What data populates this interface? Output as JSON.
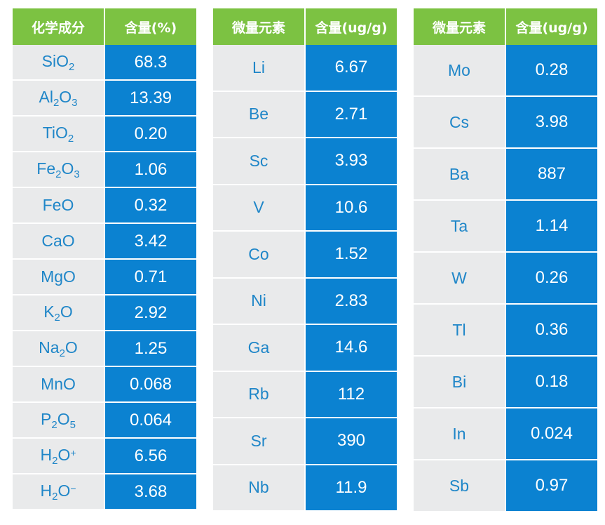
{
  "table1": {
    "header": [
      "化学成分",
      "含量(%)"
    ],
    "rows": [
      {
        "base": "SiO",
        "s1": "2",
        "m": "",
        "s2": "",
        "sup": "",
        "value": "68.3"
      },
      {
        "base": "Al",
        "s1": "2",
        "m": "O",
        "s2": "3",
        "sup": "",
        "value": "13.39"
      },
      {
        "base": "TiO",
        "s1": "2",
        "m": "",
        "s2": "",
        "sup": "",
        "value": "0.20"
      },
      {
        "base": "Fe",
        "s1": "2",
        "m": "O",
        "s2": "3",
        "sup": "",
        "value": "1.06"
      },
      {
        "base": "FeO",
        "s1": "",
        "m": "",
        "s2": "",
        "sup": "",
        "value": "0.32"
      },
      {
        "base": "CaO",
        "s1": "",
        "m": "",
        "s2": "",
        "sup": "",
        "value": "3.42"
      },
      {
        "base": "MgO",
        "s1": "",
        "m": "",
        "s2": "",
        "sup": "",
        "value": "0.71"
      },
      {
        "base": "K",
        "s1": "2",
        "m": "O",
        "s2": "",
        "sup": "",
        "value": "2.92"
      },
      {
        "base": "Na",
        "s1": "2",
        "m": "O",
        "s2": "",
        "sup": "",
        "value": "1.25"
      },
      {
        "base": "MnO",
        "s1": "",
        "m": "",
        "s2": "",
        "sup": "",
        "value": "0.068"
      },
      {
        "base": "P",
        "s1": "2",
        "m": "O",
        "s2": "5",
        "sup": "",
        "value": "0.064"
      },
      {
        "base": "H",
        "s1": "2",
        "m": "O",
        "s2": "",
        "sup": "+",
        "value": "6.56"
      },
      {
        "base": "H",
        "s1": "2",
        "m": "O",
        "s2": "",
        "sup": "−",
        "value": "3.68"
      }
    ]
  },
  "table2": {
    "header": [
      "微量元素",
      "含量(ug/g)"
    ],
    "rows": [
      {
        "el": "Li",
        "value": "6.67"
      },
      {
        "el": "Be",
        "value": "2.71"
      },
      {
        "el": "Sc",
        "value": "3.93"
      },
      {
        "el": "V",
        "value": "10.6"
      },
      {
        "el": "Co",
        "value": "1.52"
      },
      {
        "el": "Ni",
        "value": "2.83"
      },
      {
        "el": "Ga",
        "value": "14.6"
      },
      {
        "el": "Rb",
        "value": "112"
      },
      {
        "el": "Sr",
        "value": "390"
      },
      {
        "el": "Nb",
        "value": "11.9"
      }
    ]
  },
  "table3": {
    "header": [
      "微量元素",
      "含量(ug/g)"
    ],
    "rows": [
      {
        "el": "Mo",
        "value": "0.28"
      },
      {
        "el": "Cs",
        "value": "3.98"
      },
      {
        "el": "Ba",
        "value": "887"
      },
      {
        "el": "Ta",
        "value": "1.14"
      },
      {
        "el": "W",
        "value": "0.26"
      },
      {
        "el": "Tl",
        "value": "0.36"
      },
      {
        "el": "Bi",
        "value": "0.18"
      },
      {
        "el": "In",
        "value": "0.024"
      },
      {
        "el": "Sb",
        "value": "0.97"
      }
    ]
  }
}
